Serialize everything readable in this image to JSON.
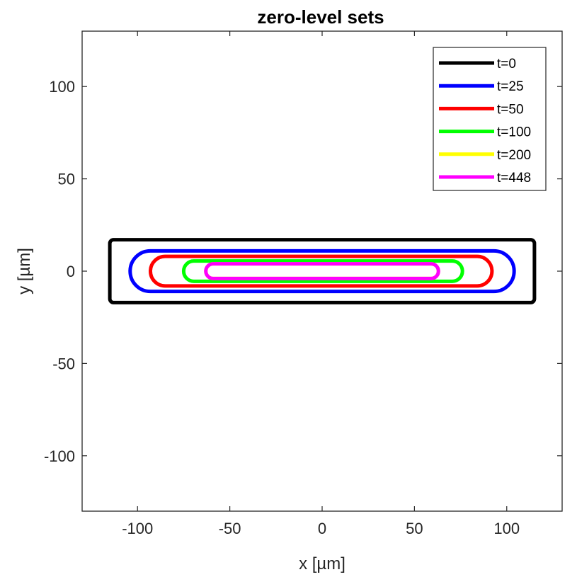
{
  "chart_data": {
    "type": "line",
    "title": "zero-level sets",
    "xlabel": "x [µm]",
    "ylabel": "y [µm]",
    "xlim": [
      -130,
      130
    ],
    "ylim": [
      -130,
      130
    ],
    "xticks": [
      -100,
      -50,
      0,
      50,
      100
    ],
    "yticks": [
      -100,
      -50,
      0,
      50,
      100
    ],
    "grid": false,
    "legend_position": "top-right",
    "series": [
      {
        "name": "t=0",
        "color": "#000000",
        "shape": "rounded-rect",
        "x_range": [
          -115,
          115
        ],
        "y_range": [
          -17,
          17
        ],
        "corner_radius": 2
      },
      {
        "name": "t=25",
        "color": "#0000ff",
        "shape": "stadium",
        "x_range": [
          -104,
          104
        ],
        "y_range": [
          -11,
          11
        ]
      },
      {
        "name": "t=50",
        "color": "#ff0000",
        "shape": "stadium",
        "x_range": [
          -93,
          92
        ],
        "y_range": [
          -8,
          8
        ]
      },
      {
        "name": "t=100",
        "color": "#00ff00",
        "shape": "stadium",
        "x_range": [
          -75,
          76
        ],
        "y_range": [
          -5.5,
          5.5
        ]
      },
      {
        "name": "t=200",
        "color": "#ffff00",
        "shape": "stadium",
        "x_range": [
          -63,
          63
        ],
        "y_range": [
          -4,
          4
        ]
      },
      {
        "name": "t=448",
        "color": "#ff00ff",
        "shape": "stadium",
        "x_range": [
          -63,
          63
        ],
        "y_range": [
          -4,
          4
        ]
      }
    ]
  }
}
